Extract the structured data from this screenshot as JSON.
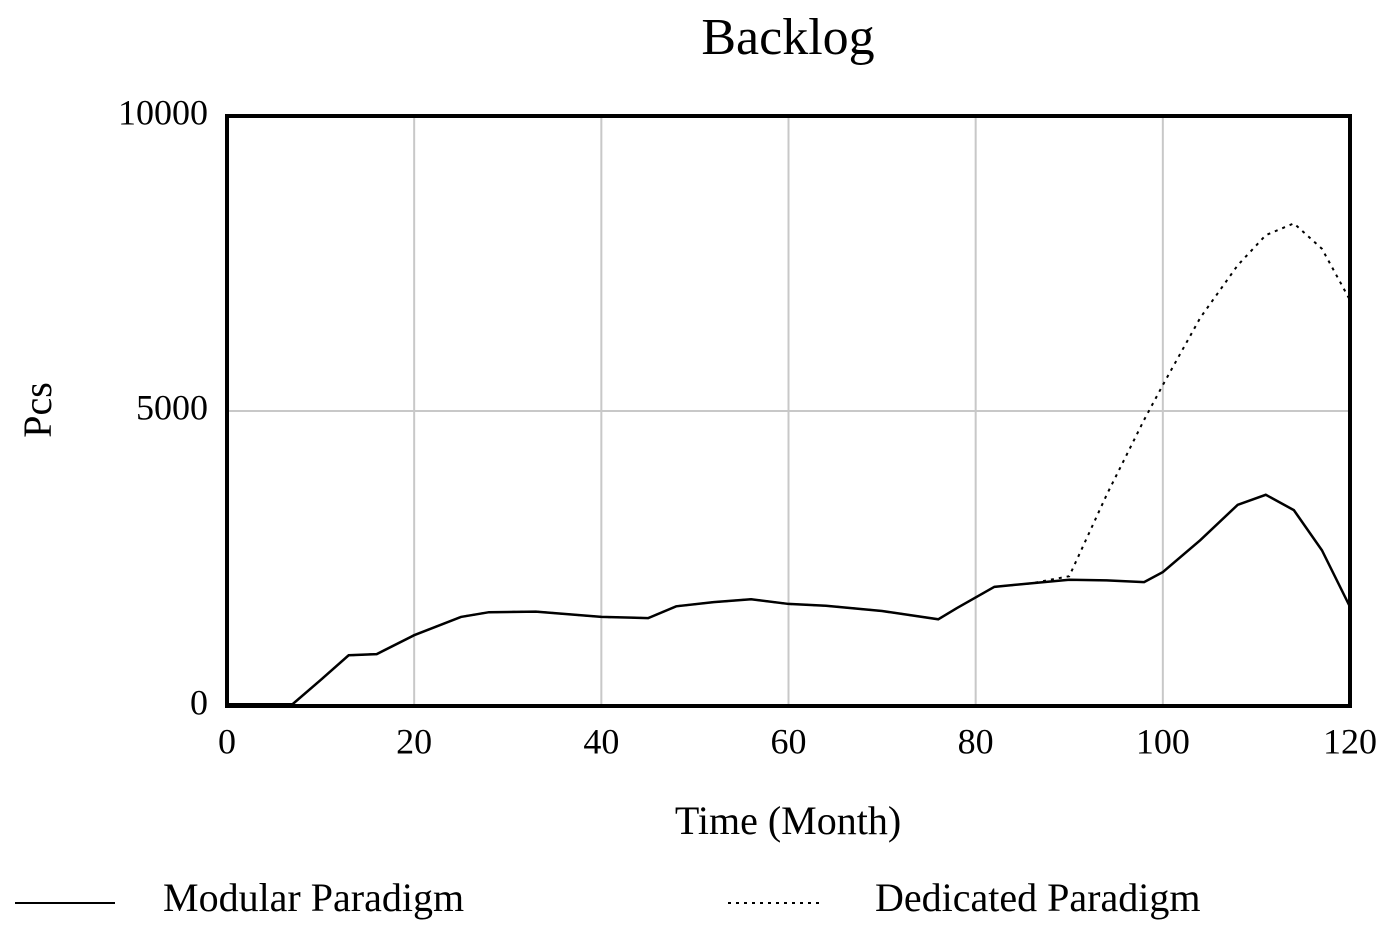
{
  "chart_data": {
    "type": "line",
    "title": "Backlog",
    "x_label": "Time (Month)",
    "y_label": "Pcs",
    "x": [
      0,
      7,
      10,
      13,
      16,
      20,
      25,
      28,
      33,
      40,
      45,
      48,
      52,
      56,
      60,
      64,
      70,
      76,
      78,
      82,
      86,
      90,
      94,
      98,
      100,
      104,
      108,
      111,
      114,
      117,
      120
    ],
    "series": [
      {
        "name": "Modular Paradigm",
        "color": "#000000",
        "dash": "solid",
        "values": [
          30,
          30,
          440,
          860,
          880,
          1200,
          1510,
          1590,
          1600,
          1510,
          1490,
          1690,
          1760,
          1810,
          1730,
          1700,
          1610,
          1470,
          1660,
          2020,
          2080,
          2140,
          2130,
          2100,
          2270,
          2810,
          3410,
          3580,
          3320,
          2640,
          1680
        ]
      },
      {
        "name": "Dedicated Paradigm",
        "color": "#000000",
        "dash": "dotted",
        "values": [
          30,
          30,
          440,
          860,
          880,
          1200,
          1510,
          1590,
          1600,
          1510,
          1490,
          1690,
          1760,
          1810,
          1730,
          1700,
          1610,
          1470,
          1660,
          2020,
          2080,
          2200,
          3580,
          4850,
          5440,
          6580,
          7470,
          7980,
          8180,
          7750,
          6880
        ]
      }
    ],
    "xlim": [
      0,
      120
    ],
    "xticks": [
      0,
      20,
      40,
      60,
      80,
      100,
      120
    ],
    "ylim": [
      0,
      10000
    ],
    "yticks": [
      0,
      5000,
      10000
    ],
    "grid": true,
    "legend": "bottom"
  }
}
